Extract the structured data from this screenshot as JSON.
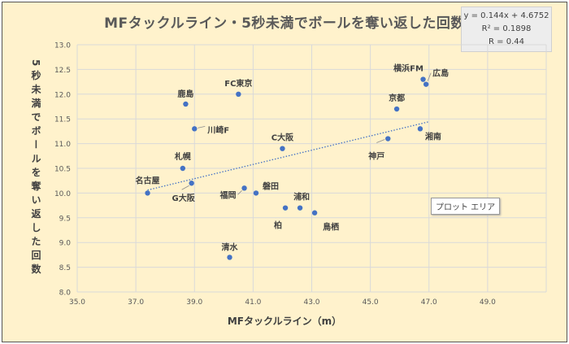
{
  "chart_data": {
    "type": "scatter",
    "title": "MFタックルライン・5秒未満でボールを奪い返した回数",
    "xlabel": "MFタックルライン（m）",
    "ylabel": "5秒未満でボールを奪い返した回数",
    "xlim": [
      35,
      51
    ],
    "ylim": [
      8,
      13
    ],
    "xticks": [
      "35.0",
      "37.0",
      "39.0",
      "41.0",
      "43.0",
      "45.0",
      "47.0",
      "49.0"
    ],
    "xtick_values": [
      35,
      37,
      39,
      41,
      43,
      45,
      47,
      49
    ],
    "yticks": [
      "8.0",
      "8.5",
      "9.0",
      "9.5",
      "10.0",
      "10.5",
      "11.0",
      "11.5",
      "12.0",
      "12.5",
      "13.0"
    ],
    "ytick_values": [
      8,
      8.5,
      9,
      9.5,
      10,
      10.5,
      11,
      11.5,
      12,
      12.5,
      13
    ],
    "grid": true,
    "points": [
      {
        "label": "名古屋",
        "x": 37.4,
        "y": 10.0
      },
      {
        "label": "G大阪",
        "x": 38.9,
        "y": 10.2
      },
      {
        "label": "札幌",
        "x": 38.6,
        "y": 10.5
      },
      {
        "label": "川崎F",
        "x": 39.0,
        "y": 11.3
      },
      {
        "label": "鹿島",
        "x": 38.7,
        "y": 11.8
      },
      {
        "label": "FC東京",
        "x": 40.5,
        "y": 12.0
      },
      {
        "label": "福岡",
        "x": 40.7,
        "y": 10.1
      },
      {
        "label": "磐田",
        "x": 41.1,
        "y": 10.0
      },
      {
        "label": "C大阪",
        "x": 42.0,
        "y": 10.9
      },
      {
        "label": "柏",
        "x": 42.1,
        "y": 9.7
      },
      {
        "label": "浦和",
        "x": 42.6,
        "y": 9.7
      },
      {
        "label": "鳥栖",
        "x": 43.1,
        "y": 9.6
      },
      {
        "label": "清水",
        "x": 40.2,
        "y": 8.7
      },
      {
        "label": "京都",
        "x": 45.9,
        "y": 11.7
      },
      {
        "label": "神戸",
        "x": 45.6,
        "y": 11.1
      },
      {
        "label": "横浜FM",
        "x": 46.8,
        "y": 12.3
      },
      {
        "label": "広島",
        "x": 46.9,
        "y": 12.2
      },
      {
        "label": "湘南",
        "x": 46.7,
        "y": 11.3
      }
    ],
    "trendline": {
      "type": "linear",
      "slope": 0.144,
      "intercept": 4.6752,
      "x_range": [
        37.4,
        47.0
      ]
    },
    "equation": {
      "line1": "y = 0.144x + 4.6752",
      "line2": "R² = 0.1898",
      "line3": "R = 0.44"
    },
    "colors": {
      "point": "#4472C4",
      "background": "#FFF2CC",
      "grid": "#D9D9D9",
      "text": "#404040"
    }
  },
  "tooltip": "プロット エリア"
}
